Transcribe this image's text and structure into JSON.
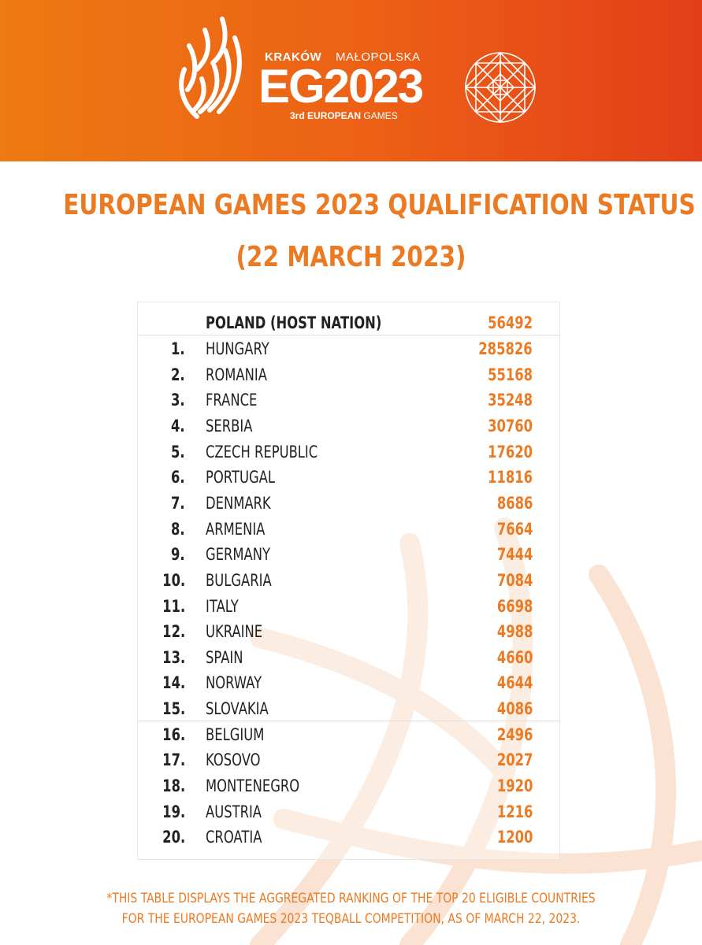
{
  "header": {
    "logo_city": "KRAKÓW",
    "logo_region": "MAŁOPOLSKA",
    "logo_main": "EG2023",
    "logo_sub_bold": "3rd EUROPEAN",
    "logo_sub_rest": "GAMES",
    "bg_colors": [
      "#ee7a12",
      "#e33e19"
    ]
  },
  "title": {
    "line1": "EUROPEAN GAMES 2023 QUALIFICATION STATUS",
    "line2": "(22 MARCH 2023)",
    "color": "#ec7a22"
  },
  "table": {
    "host": {
      "rank": "",
      "country": "POLAND (HOST NATION)",
      "value": "56492"
    },
    "rows": [
      {
        "rank": "1.",
        "country": "HUNGARY",
        "value": "285826"
      },
      {
        "rank": "2.",
        "country": "ROMANIA",
        "value": "55168"
      },
      {
        "rank": "3.",
        "country": "FRANCE",
        "value": "35248"
      },
      {
        "rank": "4.",
        "country": "SERBIA",
        "value": "30760"
      },
      {
        "rank": "5.",
        "country": "CZECH REPUBLIC",
        "value": "17620"
      },
      {
        "rank": "6.",
        "country": "PORTUGAL",
        "value": "11816"
      },
      {
        "rank": "7.",
        "country": "DENMARK",
        "value": "8686"
      },
      {
        "rank": "8.",
        "country": "ARMENIA",
        "value": "7664"
      },
      {
        "rank": "9.",
        "country": "GERMANY",
        "value": "7444"
      },
      {
        "rank": "10.",
        "country": "BULGARIA",
        "value": "7084"
      },
      {
        "rank": "11.",
        "country": "ITALY",
        "value": "6698"
      },
      {
        "rank": "12.",
        "country": "UKRAINE",
        "value": "4988"
      },
      {
        "rank": "13.",
        "country": "SPAIN",
        "value": "4660"
      },
      {
        "rank": "14.",
        "country": "NORWAY",
        "value": "4644"
      },
      {
        "rank": "15.",
        "country": "SLOVAKIA",
        "value": "4086"
      },
      {
        "rank": "16.",
        "country": "BELGIUM",
        "value": "2496"
      },
      {
        "rank": "17.",
        "country": "KOSOVO",
        "value": "2027"
      },
      {
        "rank": "18.",
        "country": "MONTENEGRO",
        "value": "1920"
      },
      {
        "rank": "19.",
        "country": "AUSTRIA",
        "value": "1216"
      },
      {
        "rank": "20.",
        "country": "CROATIA",
        "value": "1200"
      }
    ]
  },
  "footnote": {
    "line1": "*THIS TABLE DISPLAYS THE AGGREGATED RANKING OF THE TOP 20 ELIGIBLE COUNTRIES",
    "line2": "FOR THE EUROPEAN GAMES 2023 TEQBALL COMPETITION, AS OF MARCH 22, 2023."
  }
}
